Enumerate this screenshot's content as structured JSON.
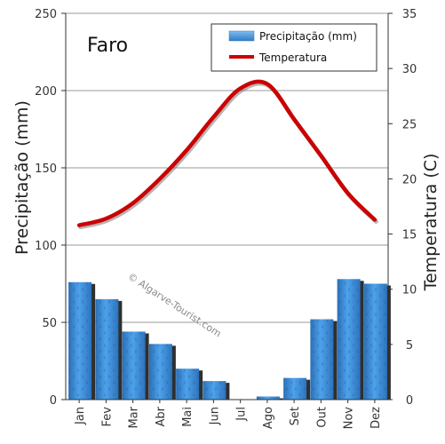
{
  "chart_data": {
    "type": "bar",
    "title": "Faro",
    "categories": [
      "Jan",
      "Fev",
      "Mar",
      "Abr",
      "Mai",
      "Jun",
      "Jul",
      "Ago",
      "Set",
      "Out",
      "Nov",
      "Dez"
    ],
    "series": [
      {
        "name": "Precipitação (mm)",
        "type": "bar",
        "axis": "left",
        "color": "#3d8ed6",
        "values": [
          76,
          65,
          44,
          36,
          20,
          12,
          0,
          2,
          14,
          52,
          78,
          75
        ]
      },
      {
        "name": "Temperatura",
        "type": "line",
        "axis": "right",
        "color": "#cc0000",
        "values": [
          15.8,
          16.4,
          17.8,
          20.0,
          22.6,
          25.6,
          28.2,
          28.6,
          25.4,
          22.1,
          18.7,
          16.3
        ]
      }
    ],
    "ylabel": "Precipitação (mm)",
    "y2label": "Temperatura (C)",
    "ylim": [
      0,
      250
    ],
    "y2lim": [
      0,
      35
    ],
    "yticks": [
      0,
      50,
      100,
      150,
      200,
      250
    ],
    "y2ticks": [
      0,
      5,
      10,
      15,
      20,
      25,
      30,
      35
    ],
    "legend_position": "top-right",
    "grid": true,
    "watermark": "© Algarve-Tourist.com"
  }
}
